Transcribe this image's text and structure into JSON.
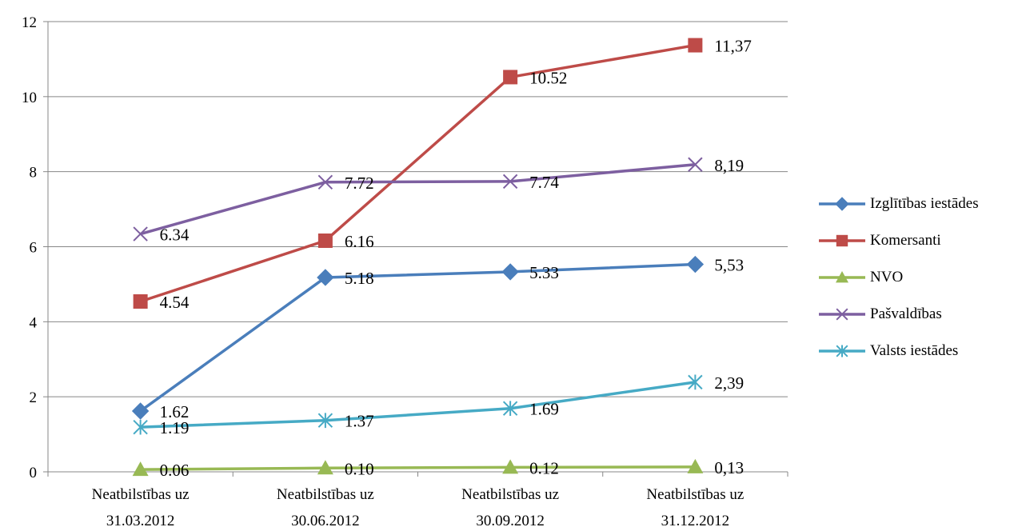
{
  "chart_data": {
    "type": "line",
    "categories": [
      [
        "Neatbilstības uz",
        "31.03.2012"
      ],
      [
        "Neatbilstības uz",
        "30.06.2012"
      ],
      [
        "Neatbilstības uz",
        "30.09.2012"
      ],
      [
        "Neatbilstības uz",
        "31.12.2012"
      ]
    ],
    "ylim": [
      0,
      12
    ],
    "yticks": [
      "0",
      "2",
      "4",
      "6",
      "8",
      "10",
      "12"
    ],
    "grid": true,
    "legend_position": "right",
    "series": [
      {
        "name": "Izglītības iestādes",
        "values": [
          1.62,
          5.18,
          5.33,
          5.53
        ],
        "labels": [
          "1.62",
          "5.18",
          "5.33",
          "5,53"
        ],
        "color": "#4a7ebb",
        "marker": "diamond"
      },
      {
        "name": "Komersanti",
        "values": [
          4.54,
          6.16,
          10.52,
          11.37
        ],
        "labels": [
          "4.54",
          "6.16",
          "10.52",
          "11,37"
        ],
        "color": "#be4b48",
        "marker": "square"
      },
      {
        "name": "NVO",
        "values": [
          0.06,
          0.1,
          0.12,
          0.13
        ],
        "labels": [
          "0.06",
          "0.10",
          "0.12",
          "0,13"
        ],
        "color": "#98b954",
        "marker": "triangle"
      },
      {
        "name": "Pašvaldības",
        "values": [
          6.34,
          7.72,
          7.74,
          8.19
        ],
        "labels": [
          "6.34",
          "7.72",
          "7.74",
          "8,19"
        ],
        "color": "#7d5fa0",
        "marker": "x"
      },
      {
        "name": "Valsts iestādes",
        "values": [
          1.19,
          1.37,
          1.69,
          2.39
        ],
        "labels": [
          "1.19",
          "1.37",
          "1.69",
          "2,39"
        ],
        "color": "#46aac5",
        "marker": "asterisk"
      }
    ]
  }
}
